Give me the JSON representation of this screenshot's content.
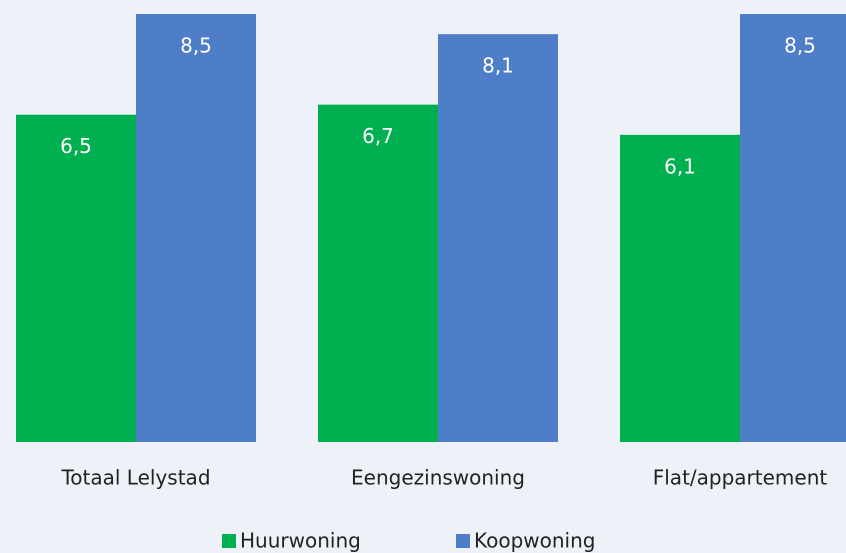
{
  "chart_data": {
    "type": "bar",
    "categories": [
      "Totaal Lelystad",
      "Eengezinswoning",
      "Flat/appartement"
    ],
    "series": [
      {
        "name": "Huurwoning",
        "color": "#00b050",
        "values": [
          6.5,
          6.7,
          6.1
        ],
        "value_labels": [
          "6,5",
          "6,7",
          "6,1"
        ]
      },
      {
        "name": "Koopwoning",
        "color": "#4f7ec9",
        "values": [
          8.5,
          8.1,
          8.5
        ],
        "value_labels": [
          "8,5",
          "8,1",
          "8,5"
        ]
      }
    ],
    "ylim": [
      0,
      8.5
    ]
  }
}
